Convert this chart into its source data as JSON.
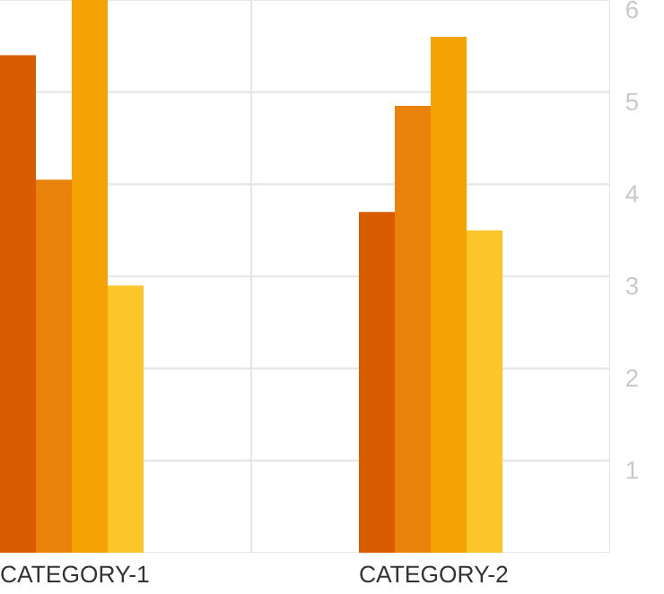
{
  "chart_data": {
    "type": "bar",
    "categories": [
      "CATEGORY-1",
      "CATEGORY-2"
    ],
    "series": [
      {
        "color": "#d95c00",
        "values": [
          5.4,
          3.7
        ]
      },
      {
        "color": "#e8820a",
        "values": [
          4.05,
          4.85
        ]
      },
      {
        "color": "#f5a205",
        "values": [
          6.0,
          5.6
        ]
      },
      {
        "color": "#fcc52a",
        "values": [
          2.9,
          3.5
        ]
      }
    ],
    "ylim": [
      0,
      6
    ],
    "yticks": [
      {
        "value": 0,
        "label": null
      },
      1,
      2,
      3,
      4,
      5,
      6
    ],
    "grid": true,
    "legend": false
  }
}
